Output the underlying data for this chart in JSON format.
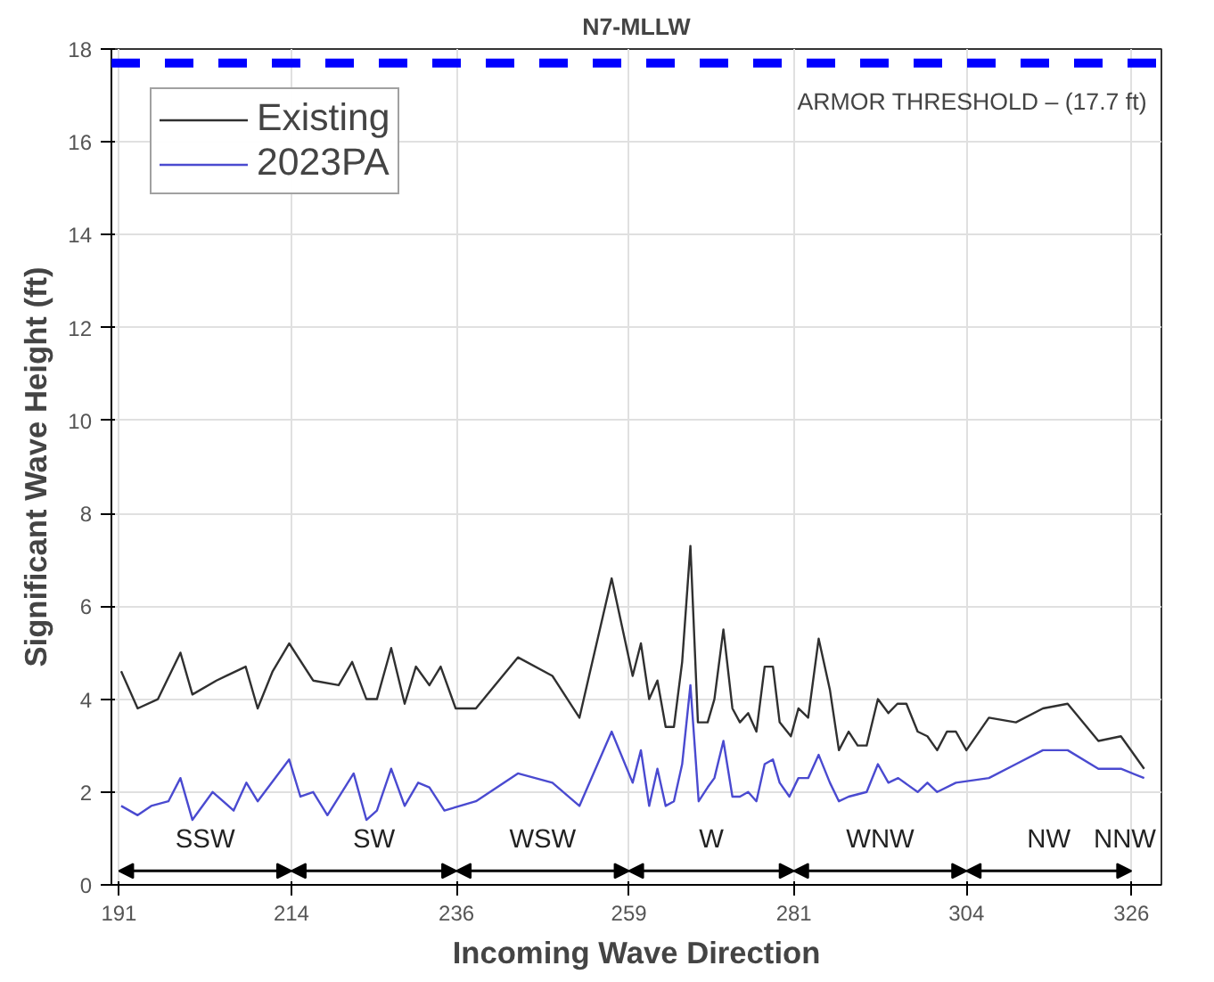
{
  "chart_data": {
    "type": "line",
    "title": "N7-MLLW",
    "xlabel": "Incoming Wave Direction",
    "ylabel": "Significant Wave Height (ft)",
    "xlim": [
      190,
      330
    ],
    "ylim": [
      0,
      18
    ],
    "xticks": [
      191,
      214,
      236,
      259,
      281,
      304,
      326
    ],
    "yticks": [
      0,
      2,
      4,
      6,
      8,
      10,
      12,
      14,
      16,
      18
    ],
    "grid": true,
    "legend": "top left",
    "line_style": "solid",
    "series": [
      {
        "name": "Existing",
        "color": "#303030",
        "x": [
          191.3,
          193.5,
          196.2,
          199.2,
          200.8,
          204.0,
          207.9,
          209.5,
          211.5,
          213.7,
          216.9,
          220.3,
          222.1,
          224.0,
          225.4,
          227.3,
          229.1,
          230.6,
          232.4,
          233.9,
          235.9,
          238.6,
          244.2,
          248.8,
          252.4,
          256.7,
          259.5,
          260.6,
          261.7,
          262.8,
          263.9,
          265.0,
          266.1,
          267.2,
          268.2,
          269.5,
          270.4,
          271.6,
          272.8,
          273.8,
          274.9,
          276.0,
          277.1,
          278.2,
          279.1,
          280.6,
          281.6,
          282.9,
          284.3,
          285.8,
          287.0,
          288.3,
          289.5,
          290.7,
          292.2,
          293.6,
          294.8,
          296.0,
          297.5,
          298.8,
          300.1,
          301.4,
          302.6,
          304.0,
          307.0,
          310.6,
          314.2,
          317.5,
          321.6,
          324.6,
          327.7
        ],
        "values": [
          4.6,
          3.8,
          4.0,
          5.0,
          4.1,
          4.4,
          4.7,
          3.8,
          4.6,
          5.2,
          4.4,
          4.3,
          4.8,
          4.0,
          4.0,
          5.1,
          3.9,
          4.7,
          4.3,
          4.7,
          3.8,
          3.8,
          4.9,
          4.5,
          3.6,
          6.6,
          4.5,
          5.2,
          4.0,
          4.4,
          3.4,
          3.4,
          4.8,
          7.3,
          3.5,
          3.5,
          4.0,
          5.5,
          3.8,
          3.5,
          3.7,
          3.3,
          4.7,
          4.7,
          3.5,
          3.2,
          3.8,
          3.6,
          5.3,
          4.2,
          2.9,
          3.3,
          3.0,
          3.0,
          4.0,
          3.7,
          3.9,
          3.9,
          3.3,
          3.2,
          2.9,
          3.3,
          3.3,
          2.9,
          3.6,
          3.5,
          3.8,
          3.9,
          3.1,
          3.2,
          2.5
        ]
      },
      {
        "name": "2023PA",
        "color": "#4a4ad0",
        "x": [
          191.3,
          193.5,
          195.3,
          197.6,
          199.2,
          200.8,
          203.5,
          206.3,
          208.0,
          209.5,
          213.7,
          215.2,
          216.9,
          218.8,
          222.3,
          224.0,
          225.4,
          227.3,
          229.1,
          230.9,
          232.4,
          234.4,
          238.6,
          244.2,
          248.8,
          252.4,
          256.7,
          259.5,
          260.6,
          261.7,
          262.8,
          263.9,
          265.0,
          266.1,
          267.2,
          268.3,
          269.5,
          270.4,
          271.6,
          272.8,
          273.8,
          274.9,
          276.0,
          277.1,
          278.2,
          279.1,
          280.4,
          281.6,
          282.9,
          284.3,
          285.8,
          287.0,
          288.3,
          290.7,
          292.2,
          293.6,
          294.9,
          297.5,
          298.8,
          300.1,
          302.6,
          307.0,
          310.6,
          314.2,
          317.5,
          321.6,
          324.6,
          327.7
        ],
        "values": [
          1.7,
          1.5,
          1.7,
          1.8,
          2.3,
          1.4,
          2.0,
          1.6,
          2.2,
          1.8,
          2.7,
          1.9,
          2.0,
          1.5,
          2.4,
          1.4,
          1.6,
          2.5,
          1.7,
          2.2,
          2.1,
          1.6,
          1.8,
          2.4,
          2.2,
          1.7,
          3.3,
          2.2,
          2.9,
          1.7,
          2.5,
          1.7,
          1.8,
          2.6,
          4.3,
          1.8,
          2.1,
          2.3,
          3.1,
          1.9,
          1.9,
          2.0,
          1.8,
          2.6,
          2.7,
          2.2,
          1.9,
          2.3,
          2.3,
          2.8,
          2.2,
          1.8,
          1.9,
          2.0,
          2.6,
          2.2,
          2.3,
          2.0,
          2.2,
          2.0,
          2.2,
          2.3,
          2.6,
          2.9,
          2.9,
          2.5,
          2.5,
          2.3
        ]
      }
    ],
    "ref_lines": [
      {
        "axis": "y",
        "value": 17.7,
        "label": "ARMOR THRESHOLD – (17.7 ft)",
        "color": "#0000ff",
        "line_style": "dashed"
      }
    ],
    "annotations": [
      "SSW",
      "SW",
      "WSW",
      "W",
      "WNW",
      "NW",
      "NNW"
    ]
  }
}
